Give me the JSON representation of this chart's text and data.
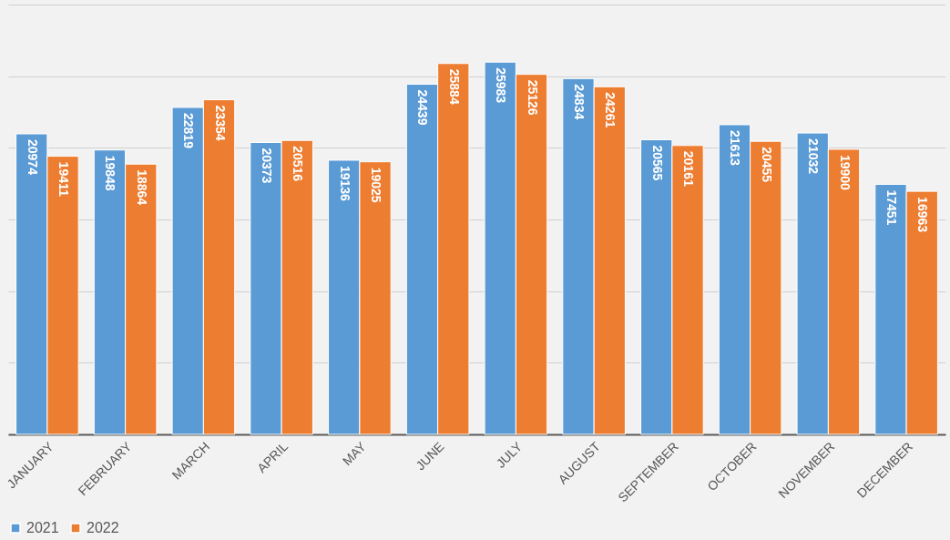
{
  "chart_data": {
    "type": "bar",
    "categories": [
      "JANUARY",
      "FEBRUARY",
      "MARCH",
      "APRIL",
      "MAY",
      "JUNE",
      "JULY",
      "AUGUST",
      "SEPTEMBER",
      "OCTOBER",
      "NOVEMBER",
      "DECEMBER"
    ],
    "series": [
      {
        "name": "2021",
        "color": "#5b9bd5",
        "values": [
          20974,
          19848,
          22819,
          20373,
          19136,
          24439,
          25983,
          24834,
          20565,
          21613,
          21032,
          17451
        ]
      },
      {
        "name": "2022",
        "color": "#ed7d31",
        "values": [
          19411,
          18864,
          23354,
          20516,
          19025,
          25884,
          25126,
          24261,
          20161,
          20455,
          19900,
          16963
        ]
      }
    ],
    "ylim": [
      0,
      30000
    ],
    "yticks": [
      {
        "value": 0,
        "label": null
      },
      {
        "value": 5000,
        "label": null
      },
      {
        "value": 10000,
        "label": null
      },
      {
        "value": 15000,
        "label": null
      },
      {
        "value": 20000,
        "label": null
      },
      {
        "value": 25000,
        "label": null
      },
      {
        "value": 30000,
        "label": null
      }
    ],
    "tick_labels": "x",
    "grid": "y",
    "legend": "bottom",
    "data_labels": true
  }
}
